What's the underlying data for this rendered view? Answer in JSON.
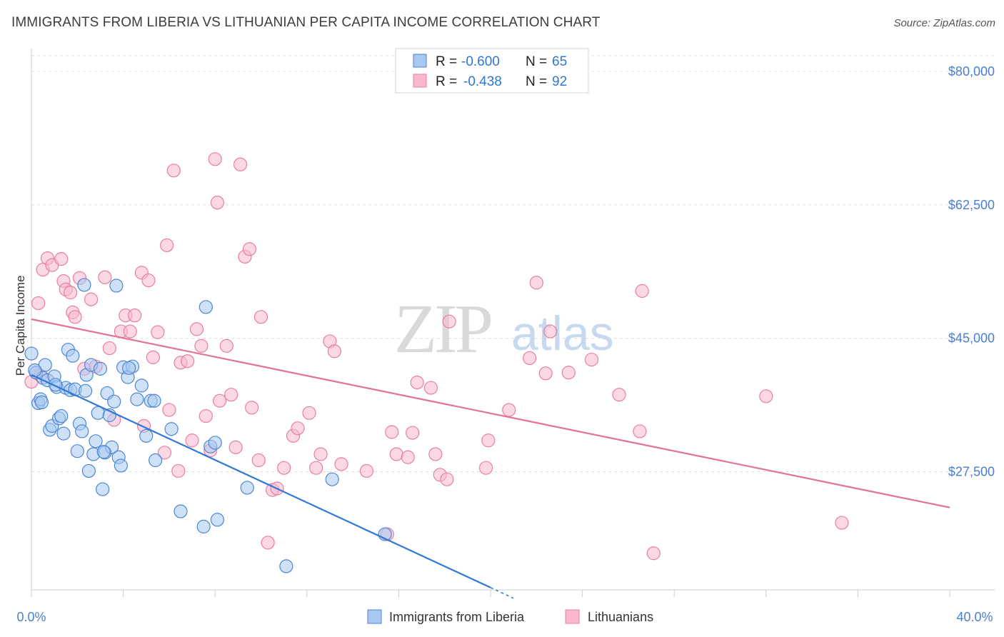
{
  "title": "IMMIGRANTS FROM LIBERIA VS LITHUANIAN PER CAPITA INCOME CORRELATION CHART",
  "source": "Source: ZipAtlas.com",
  "watermark": {
    "zip": "ZIP",
    "atlas": "atlas"
  },
  "legend_box": {
    "rows": [
      {
        "r_label": "R =",
        "r_value": "-0.600",
        "n_label": "N =",
        "n_value": "65"
      },
      {
        "r_label": "R =",
        "r_value": "-0.438",
        "n_label": "N =",
        "n_value": "92"
      }
    ]
  },
  "colors": {
    "blue_fill": "#a8c8f0",
    "blue_stroke": "#4d86d4",
    "blue_line": "#2f78d6",
    "pink_fill": "#f7b8cc",
    "pink_stroke": "#e77fa0",
    "pink_line": "#e2719a",
    "axis_label": "#4a7fd0",
    "grid": "#dddddd"
  },
  "chart_data": {
    "type": "scatter",
    "title": "IMMIGRANTS FROM LIBERIA VS LITHUANIAN PER CAPITA INCOME CORRELATION CHART",
    "xlabel": "",
    "ylabel": "Per Capita Income",
    "xlim": [
      0,
      40
    ],
    "ylim": [
      12000,
      83000
    ],
    "x_tick_labels": [
      "0.0%",
      "40.0%"
    ],
    "y_ticks": [
      27500,
      45000,
      62500,
      80000
    ],
    "y_tick_labels": [
      "$27,500",
      "$45,000",
      "$62,500",
      "$80,000"
    ],
    "grid": true,
    "legend_position": "bottom-center",
    "series": [
      {
        "name": "Immigrants from Liberia",
        "r": -0.6,
        "n": 65,
        "trend": {
          "x": [
            0.0,
            20.0
          ],
          "y": [
            40200,
            12300
          ],
          "dashed_to": [
            21.0,
            10900
          ]
        },
        "points": [
          [
            0.0,
            43000
          ],
          [
            0.2,
            40500
          ],
          [
            0.3,
            36500
          ],
          [
            0.4,
            37000
          ],
          [
            0.5,
            39800
          ],
          [
            0.6,
            41500
          ],
          [
            0.7,
            39500
          ],
          [
            0.8,
            33000
          ],
          [
            0.9,
            33500
          ],
          [
            1.0,
            40000
          ],
          [
            1.1,
            38600
          ],
          [
            1.2,
            34500
          ],
          [
            1.3,
            34800
          ],
          [
            1.4,
            32500
          ],
          [
            1.5,
            38500
          ],
          [
            1.6,
            43500
          ],
          [
            1.7,
            38200
          ],
          [
            1.8,
            42700
          ],
          [
            1.9,
            38300
          ],
          [
            2.0,
            30200
          ],
          [
            2.1,
            33800
          ],
          [
            2.2,
            32800
          ],
          [
            2.3,
            52000
          ],
          [
            2.4,
            40200
          ],
          [
            2.5,
            27600
          ],
          [
            2.6,
            41500
          ],
          [
            2.7,
            29800
          ],
          [
            2.8,
            31500
          ],
          [
            2.9,
            35200
          ],
          [
            3.0,
            41000
          ],
          [
            3.1,
            25200
          ],
          [
            3.2,
            30000
          ],
          [
            3.3,
            37800
          ],
          [
            3.4,
            34900
          ],
          [
            3.5,
            30700
          ],
          [
            3.6,
            36700
          ],
          [
            3.7,
            51900
          ],
          [
            3.8,
            29400
          ],
          [
            3.9,
            28300
          ],
          [
            4.0,
            41200
          ],
          [
            4.2,
            39900
          ],
          [
            4.4,
            41300
          ],
          [
            4.6,
            37000
          ],
          [
            4.8,
            38800
          ],
          [
            5.0,
            32200
          ],
          [
            5.2,
            36800
          ],
          [
            5.4,
            29000
          ],
          [
            6.1,
            33100
          ],
          [
            6.5,
            22300
          ],
          [
            7.5,
            20300
          ],
          [
            7.6,
            49100
          ],
          [
            7.8,
            30800
          ],
          [
            8.0,
            31300
          ],
          [
            8.1,
            21200
          ],
          [
            9.4,
            25400
          ],
          [
            11.1,
            15100
          ],
          [
            13.1,
            26500
          ],
          [
            15.4,
            19300
          ],
          [
            0.15,
            40800
          ],
          [
            0.45,
            36600
          ],
          [
            1.05,
            38900
          ],
          [
            2.35,
            38100
          ],
          [
            3.15,
            30100
          ],
          [
            4.25,
            41100
          ],
          [
            5.35,
            36800
          ]
        ]
      },
      {
        "name": "Lithuanians",
        "r": -0.438,
        "n": 92,
        "trend": {
          "x": [
            0.0,
            40.0
          ],
          "y": [
            47500,
            22800
          ]
        },
        "points": [
          [
            0.0,
            39300
          ],
          [
            0.2,
            40500
          ],
          [
            0.3,
            49600
          ],
          [
            0.5,
            54000
          ],
          [
            0.7,
            55500
          ],
          [
            0.9,
            54600
          ],
          [
            1.3,
            55400
          ],
          [
            1.4,
            52500
          ],
          [
            1.5,
            51400
          ],
          [
            1.7,
            51000
          ],
          [
            1.8,
            48400
          ],
          [
            1.9,
            47800
          ],
          [
            2.1,
            52900
          ],
          [
            2.3,
            41000
          ],
          [
            2.6,
            50100
          ],
          [
            2.8,
            41300
          ],
          [
            3.2,
            53000
          ],
          [
            3.4,
            43700
          ],
          [
            3.6,
            34300
          ],
          [
            3.9,
            45900
          ],
          [
            4.1,
            48000
          ],
          [
            4.3,
            45900
          ],
          [
            4.5,
            48000
          ],
          [
            4.8,
            53600
          ],
          [
            4.9,
            33500
          ],
          [
            5.1,
            52600
          ],
          [
            5.3,
            42500
          ],
          [
            5.5,
            45800
          ],
          [
            5.8,
            30000
          ],
          [
            5.9,
            57200
          ],
          [
            6.0,
            35600
          ],
          [
            6.2,
            67000
          ],
          [
            6.4,
            27600
          ],
          [
            6.5,
            41800
          ],
          [
            6.8,
            42000
          ],
          [
            7.0,
            31600
          ],
          [
            7.2,
            46200
          ],
          [
            7.4,
            44000
          ],
          [
            7.6,
            34800
          ],
          [
            7.8,
            30300
          ],
          [
            8.0,
            68500
          ],
          [
            8.1,
            62800
          ],
          [
            8.2,
            36800
          ],
          [
            8.5,
            44000
          ],
          [
            8.7,
            37600
          ],
          [
            8.9,
            30700
          ],
          [
            9.1,
            67800
          ],
          [
            9.3,
            55700
          ],
          [
            9.5,
            56700
          ],
          [
            9.6,
            35900
          ],
          [
            9.9,
            29000
          ],
          [
            10.0,
            47800
          ],
          [
            10.3,
            18200
          ],
          [
            10.5,
            25100
          ],
          [
            10.7,
            25300
          ],
          [
            11.0,
            28000
          ],
          [
            11.4,
            32200
          ],
          [
            11.6,
            33200
          ],
          [
            12.1,
            35200
          ],
          [
            12.4,
            28000
          ],
          [
            12.6,
            29800
          ],
          [
            13.0,
            44600
          ],
          [
            13.2,
            43300
          ],
          [
            13.5,
            28500
          ],
          [
            14.6,
            27600
          ],
          [
            15.5,
            19300
          ],
          [
            15.7,
            32700
          ],
          [
            15.9,
            29800
          ],
          [
            16.4,
            29400
          ],
          [
            16.6,
            32600
          ],
          [
            16.8,
            39200
          ],
          [
            17.4,
            38500
          ],
          [
            17.6,
            29800
          ],
          [
            17.8,
            27100
          ],
          [
            18.1,
            26500
          ],
          [
            18.2,
            47200
          ],
          [
            19.8,
            28000
          ],
          [
            19.9,
            31600
          ],
          [
            20.8,
            35600
          ],
          [
            21.7,
            42400
          ],
          [
            22.0,
            52300
          ],
          [
            22.4,
            40400
          ],
          [
            22.6,
            45900
          ],
          [
            23.4,
            40500
          ],
          [
            24.4,
            42200
          ],
          [
            25.6,
            37600
          ],
          [
            26.5,
            32800
          ],
          [
            26.6,
            51200
          ],
          [
            27.1,
            16800
          ],
          [
            32.0,
            37400
          ],
          [
            35.3,
            20800
          ],
          [
            0.4,
            40100
          ]
        ]
      }
    ]
  }
}
